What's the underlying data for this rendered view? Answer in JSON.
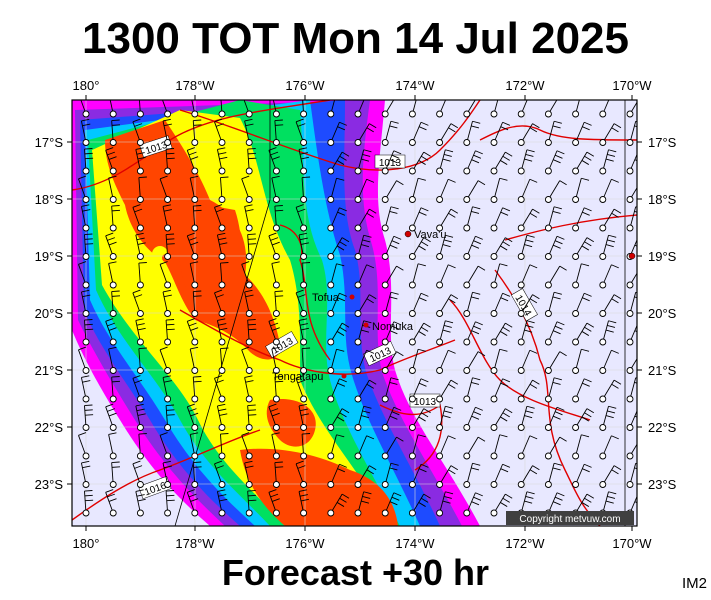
{
  "title": "1300 TOT Mon 14 Jul 2025",
  "footer": "Forecast +30 hr",
  "image_tag": "IM2",
  "copyright": "Copyright metvuw.com",
  "x_ticks": [
    "180°",
    "178°W",
    "176°W",
    "174°W",
    "172°W",
    "170°W"
  ],
  "y_ticks": [
    "17°S",
    "18°S",
    "19°S",
    "20°S",
    "21°S",
    "22°S",
    "23°S"
  ],
  "places": [
    {
      "name": "Vava'u",
      "lon": -174.05,
      "lat": -18.65
    },
    {
      "name": "Tofua",
      "lon": -175.05,
      "lat": -19.75
    },
    {
      "name": "Nomuka",
      "lon": -174.8,
      "lat": -20.25
    },
    {
      "name": "Tongatapu",
      "lon": -175.2,
      "lat": -21.15
    }
  ],
  "isobar_labels": [
    "1013",
    "1013",
    "1013",
    "1013",
    "1013",
    "1014",
    "1016"
  ],
  "colors": {
    "background_fill": "#e8e8ff",
    "isobar": "#e00000",
    "rain_heavy": "#ff4500",
    "rain_mid": "#ffff00",
    "rain_light": "#00c8ff"
  }
}
